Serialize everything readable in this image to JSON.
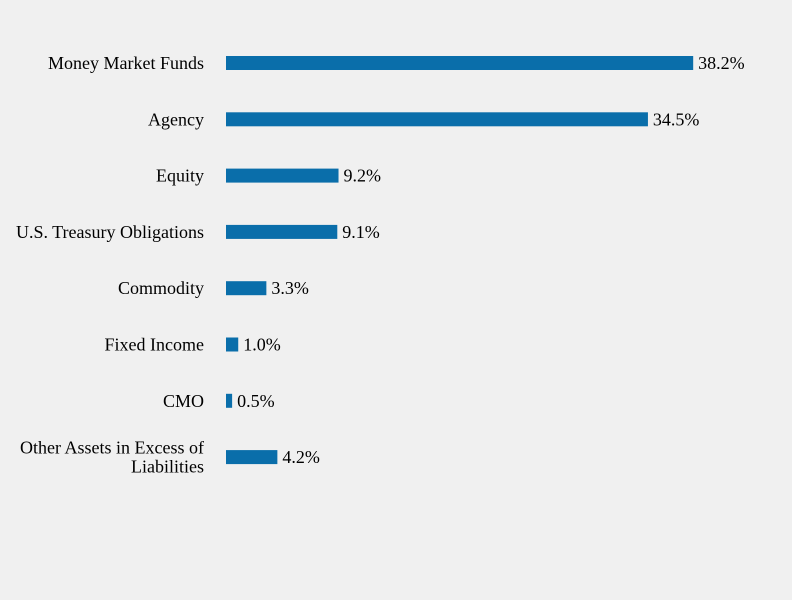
{
  "chart_data": {
    "type": "bar",
    "orientation": "horizontal",
    "categories": [
      "Money Market Funds",
      "Agency",
      "Equity",
      "U.S. Treasury Obligations",
      "Commodity",
      "Fixed Income",
      "CMO",
      "Other Assets in Excess of Liabilities"
    ],
    "category_lines": [
      [
        "Money Market Funds"
      ],
      [
        "Agency"
      ],
      [
        "Equity"
      ],
      [
        "U.S. Treasury Obligations"
      ],
      [
        "Commodity"
      ],
      [
        "Fixed Income"
      ],
      [
        "CMO"
      ],
      [
        "Other Assets in Excess of",
        "Liabilities"
      ]
    ],
    "values": [
      38.2,
      34.5,
      9.2,
      9.1,
      3.3,
      1.0,
      0.5,
      4.2
    ],
    "value_labels": [
      "38.2%",
      "34.5%",
      "9.2%",
      "9.1%",
      "3.3%",
      "1.0%",
      "0.5%",
      "4.2%"
    ],
    "unit": "%",
    "title": "",
    "xlabel": "",
    "ylabel": "",
    "grid": false,
    "legend": "none",
    "bar_color": "#0a6eaa"
  }
}
